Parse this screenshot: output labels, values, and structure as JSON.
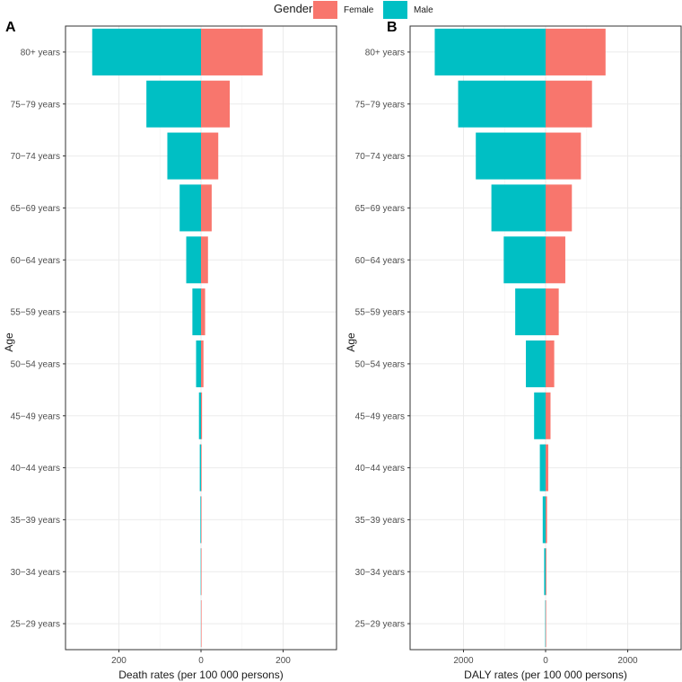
{
  "legend": {
    "title": "Gender",
    "items": [
      {
        "label": "Female",
        "color": "#F8766D"
      },
      {
        "label": "Male",
        "color": "#00BFC4"
      }
    ]
  },
  "chart_data": [
    {
      "type": "bar",
      "panel_label": "A",
      "orientation": "horizontal-population-pyramid",
      "categories": [
        "80+ years",
        "75−79 years",
        "70−74 years",
        "65−69 years",
        "60−64 years",
        "55−59 years",
        "50−54 years",
        "45−49 years",
        "40−44 years",
        "35−39 years",
        "30−34 years",
        "25−29 years"
      ],
      "series": [
        {
          "name": "Male",
          "color": "#00BFC4",
          "direction": "left",
          "values": [
            265,
            133,
            82,
            52,
            36,
            21,
            12,
            5,
            3,
            1.5,
            0.8,
            0.3
          ]
        },
        {
          "name": "Female",
          "color": "#F8766D",
          "direction": "right",
          "values": [
            150,
            70,
            42,
            26,
            17,
            10,
            6,
            2.5,
            1.5,
            0.7,
            0.4,
            0.2
          ]
        }
      ],
      "xlabel": "Death rates (per 100 000 persons)",
      "ylabel": "Age",
      "xlim": [
        -330,
        330
      ],
      "xticks": [
        -200,
        0,
        200
      ],
      "xtick_labels": [
        "200",
        "0",
        "200"
      ],
      "grid": true
    },
    {
      "type": "bar",
      "panel_label": "B",
      "orientation": "horizontal-population-pyramid",
      "categories": [
        "80+ years",
        "75−79 years",
        "70−74 years",
        "65−69 years",
        "60−64 years",
        "55−59 years",
        "50−54 years",
        "45−49 years",
        "40−44 years",
        "35−39 years",
        "30−34 years",
        "25−29 years"
      ],
      "series": [
        {
          "name": "Male",
          "color": "#00BFC4",
          "direction": "left",
          "values": [
            2700,
            2130,
            1700,
            1320,
            1020,
            740,
            480,
            280,
            140,
            70,
            35,
            10
          ]
        },
        {
          "name": "Female",
          "color": "#F8766D",
          "direction": "right",
          "values": [
            1460,
            1130,
            860,
            640,
            480,
            320,
            210,
            120,
            65,
            35,
            18,
            6
          ]
        }
      ],
      "xlabel": "DALY rates (per 100 000 persons)",
      "ylabel": "Age",
      "xlim": [
        -3300,
        3300
      ],
      "xticks": [
        -2000,
        0,
        2000
      ],
      "xtick_labels": [
        "2000",
        "0",
        "2000"
      ],
      "grid": true
    }
  ]
}
